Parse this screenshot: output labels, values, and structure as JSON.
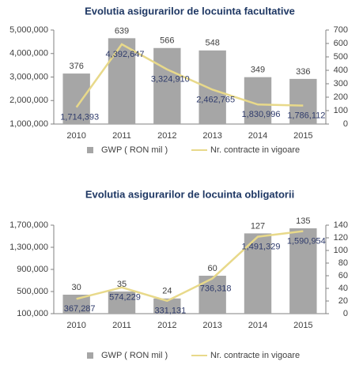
{
  "chart_data": [
    {
      "type": "combo",
      "title": "Evolutia asigurarilor  de locuinta facultative",
      "categories": [
        "2010",
        "2011",
        "2012",
        "2013",
        "2014",
        "2015"
      ],
      "series": [
        {
          "name": "GWP ( RON mil )",
          "type": "bar",
          "axis": "y2",
          "color": "#a6a6a6",
          "values": [
            376,
            639,
            566,
            548,
            349,
            336
          ]
        },
        {
          "name": "Nr. contracte in vigoare",
          "type": "line",
          "axis": "y",
          "color": "#e8d98a",
          "values": [
            1714393,
            4392647,
            3324910,
            2462765,
            1830996,
            1786112
          ],
          "value_labels": [
            "1,714,393",
            "4,392,647",
            "3,324,910",
            "2,462,765",
            "1,830,996",
            "1,786,112"
          ]
        }
      ],
      "ylim": [
        1000000,
        5000000
      ],
      "yticks": [
        {
          "value": 1000000,
          "label": "1,000,000"
        },
        {
          "value": 2000000,
          "label": "2,000,000"
        },
        {
          "value": 3000000,
          "label": "3,000,000"
        },
        {
          "value": 4000000,
          "label": "4,000,000"
        },
        {
          "value": 5000000,
          "label": "5,000,000"
        }
      ],
      "y2lim": [
        0,
        700
      ],
      "y2ticks": [
        0,
        100,
        200,
        300,
        400,
        500,
        600,
        700
      ]
    },
    {
      "type": "combo",
      "title": "Evolutia asigurarilor  de locuinta obligatorii",
      "categories": [
        "2010",
        "2011",
        "2012",
        "2013",
        "2014",
        "2015"
      ],
      "series": [
        {
          "name": "GWP ( RON mil )",
          "type": "bar",
          "axis": "y2",
          "color": "#a6a6a6",
          "values": [
            30,
            35,
            24,
            60,
            127,
            135
          ]
        },
        {
          "name": "Nr. contracte in vigoare",
          "type": "line",
          "axis": "y",
          "color": "#e8d98a",
          "values": [
            367287,
            574229,
            331131,
            736318,
            1491329,
            1590954
          ],
          "value_labels": [
            "367,287",
            "574,229",
            "331,131",
            "736,318",
            "1,491,329",
            "1,590,954"
          ]
        }
      ],
      "ylim": [
        100000,
        1700000
      ],
      "yticks": [
        {
          "value": 100000,
          "label": "100,000"
        },
        {
          "value": 500000,
          "label": "500,000"
        },
        {
          "value": 900000,
          "label": "900,000"
        },
        {
          "value": 1300000,
          "label": "1,300,000"
        },
        {
          "value": 1700000,
          "label": "1,700,000"
        }
      ],
      "y2lim": [
        0,
        140
      ],
      "y2ticks": [
        0,
        20,
        40,
        60,
        80,
        100,
        120,
        140
      ]
    }
  ]
}
